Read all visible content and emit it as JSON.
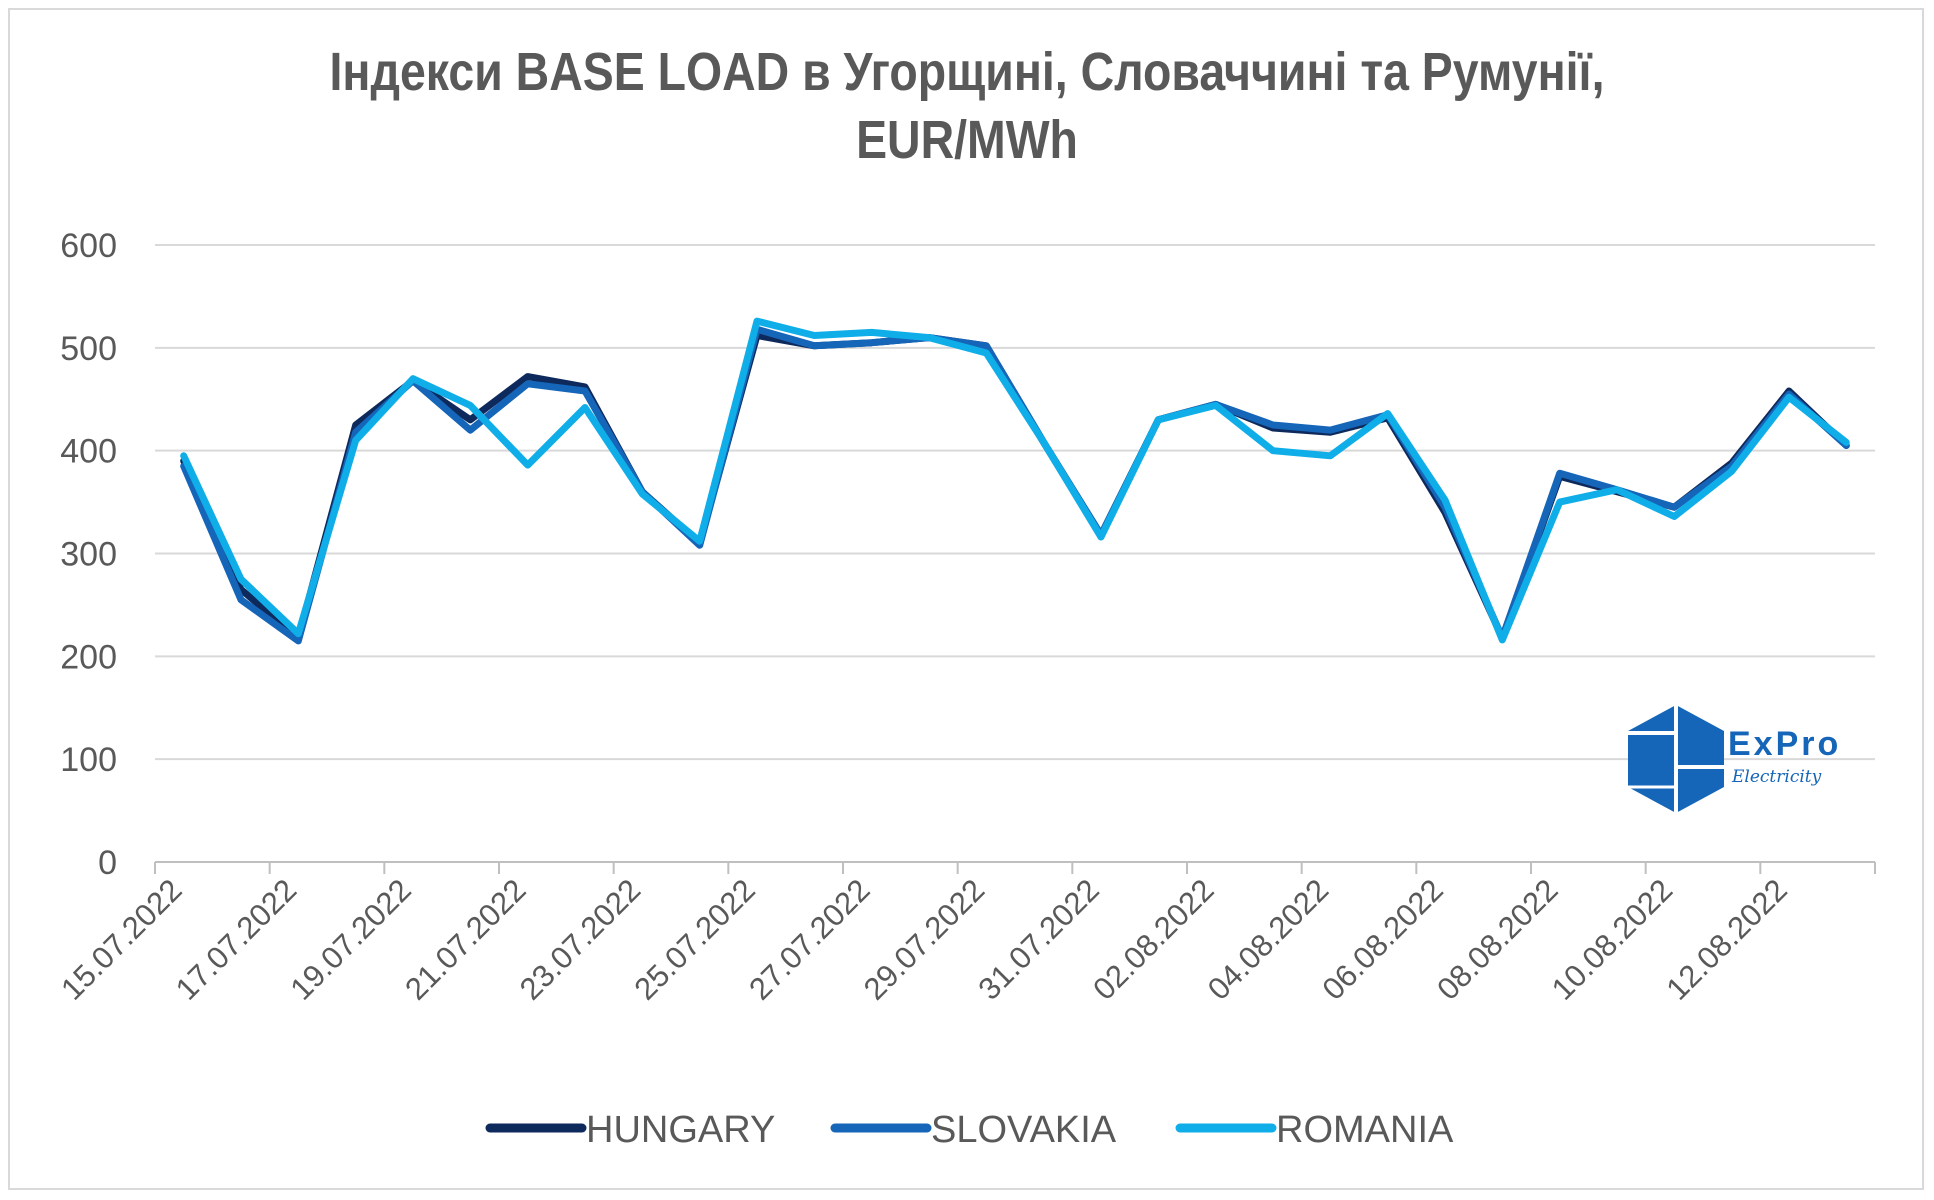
{
  "chart_data": {
    "type": "line",
    "title": "Індекси BASE LOAD в Угорщині, Словаччині та Румунії, EUR/MWh",
    "title_lines": [
      "Індекси BASE LOAD в Угорщині, Словаччині та Румунії,",
      "EUR/MWh"
    ],
    "xlabel": "",
    "ylabel": "",
    "ylim": [
      0,
      600
    ],
    "yticks": [
      "0",
      "100",
      "200",
      "300",
      "400",
      "500",
      "600"
    ],
    "grid": true,
    "legend_position": "bottom",
    "x": [
      "15.07.2022",
      "16.07.2022",
      "17.07.2022",
      "18.07.2022",
      "19.07.2022",
      "20.07.2022",
      "21.07.2022",
      "22.07.2022",
      "23.07.2022",
      "24.07.2022",
      "25.07.2022",
      "26.07.2022",
      "27.07.2022",
      "28.07.2022",
      "29.07.2022",
      "30.07.2022",
      "31.07.2022",
      "01.08.2022",
      "02.08.2022",
      "03.08.2022",
      "04.08.2022",
      "05.08.2022",
      "06.08.2022",
      "07.08.2022",
      "08.08.2022",
      "09.08.2022",
      "10.08.2022",
      "11.08.2022",
      "12.08.2022",
      "13.08.2022"
    ],
    "x_tick_labels": [
      "15.07.2022",
      "17.07.2022",
      "19.07.2022",
      "21.07.2022",
      "23.07.2022",
      "25.07.2022",
      "27.07.2022",
      "29.07.2022",
      "31.07.2022",
      "02.08.2022",
      "04.08.2022",
      "06.08.2022",
      "08.08.2022",
      "10.08.2022",
      "12.08.2022"
    ],
    "series": [
      {
        "name": "HUNGARY",
        "color": "#0e2a5c",
        "values": [
          390,
          265,
          218,
          425,
          468,
          430,
          472,
          462,
          360,
          310,
          512,
          502,
          505,
          510,
          502,
          408,
          318,
          430,
          445,
          422,
          418,
          432,
          340,
          218,
          375,
          360,
          345,
          388,
          458,
          405
        ]
      },
      {
        "name": "SLOVAKIA",
        "color": "#1565b8",
        "values": [
          385,
          255,
          215,
          418,
          468,
          420,
          465,
          458,
          360,
          308,
          518,
          502,
          505,
          510,
          502,
          408,
          318,
          430,
          445,
          425,
          420,
          435,
          345,
          218,
          378,
          362,
          345,
          385,
          455,
          405
        ]
      },
      {
        "name": "ROMANIA",
        "color": "#10aee8",
        "values": [
          395,
          275,
          222,
          410,
          470,
          444,
          386,
          442,
          358,
          312,
          526,
          512,
          515,
          510,
          495,
          408,
          316,
          430,
          444,
          400,
          395,
          436,
          352,
          216,
          350,
          362,
          336,
          380,
          452,
          408
        ]
      }
    ]
  },
  "logo": {
    "name": "ExPro",
    "sub": "Electricity",
    "color": "#1565b8",
    "icon": "hexagon-cube-icon"
  }
}
